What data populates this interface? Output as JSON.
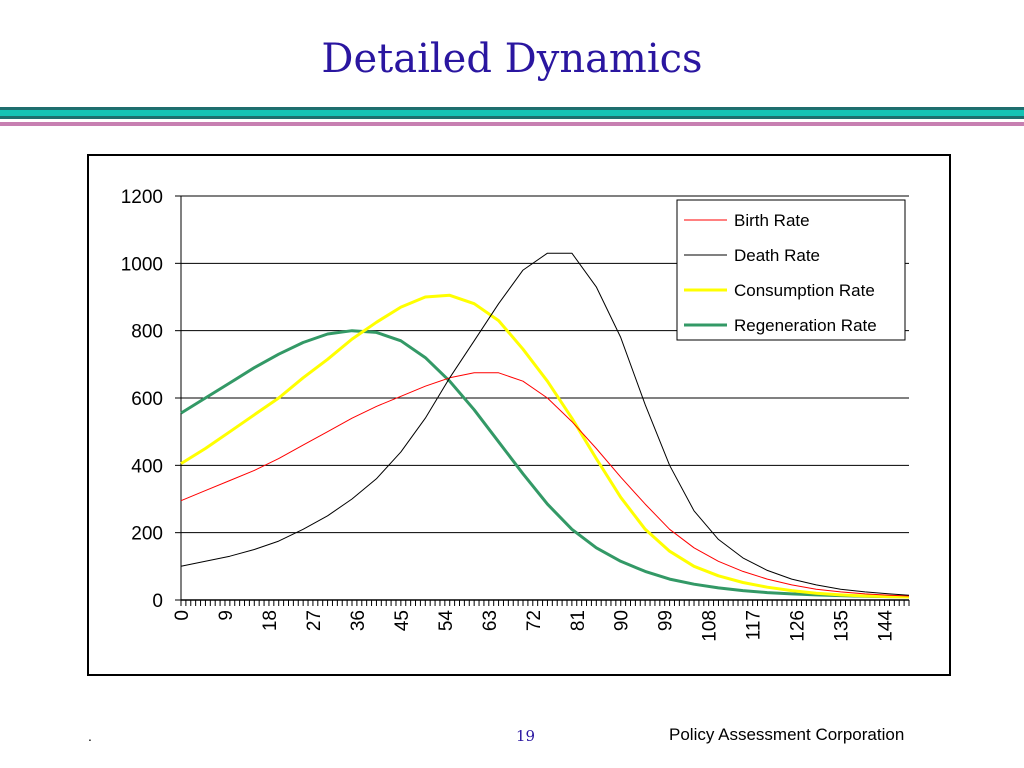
{
  "slide": {
    "title": "Detailed Dynamics",
    "footer_left": ".",
    "page_number": "19",
    "organization": "Policy Assessment Corporation"
  },
  "colors": {
    "title": "#2a16a0",
    "rule_dark": "#1e6e6e",
    "rule_teal": "#15c3b5",
    "rule_pink": "#c77fb1"
  },
  "chart_data": {
    "type": "line",
    "title": "",
    "xlabel": "",
    "ylabel": "",
    "ylim": [
      0,
      1200
    ],
    "xlim": [
      0,
      149
    ],
    "yticks": [
      0,
      200,
      400,
      600,
      800,
      1000,
      1200
    ],
    "xticks": [
      "0",
      "9",
      "18",
      "27",
      "36",
      "45",
      "54",
      "63",
      "72",
      "81",
      "90",
      "99",
      "108",
      "117",
      "126",
      "135",
      "144"
    ],
    "grid": "horizontal",
    "legend_position": "top-right",
    "x": [
      0,
      5,
      10,
      15,
      20,
      25,
      30,
      35,
      40,
      45,
      50,
      55,
      60,
      65,
      70,
      75,
      80,
      85,
      90,
      95,
      100,
      105,
      110,
      115,
      120,
      125,
      130,
      135,
      140,
      145,
      149
    ],
    "series": [
      {
        "name": "Birth Rate",
        "color": "#ff0000",
        "width": 1,
        "values": [
          295,
          325,
          355,
          385,
          420,
          460,
          500,
          540,
          575,
          605,
          635,
          660,
          675,
          675,
          650,
          600,
          530,
          450,
          365,
          285,
          210,
          155,
          115,
          85,
          62,
          45,
          32,
          24,
          18,
          14,
          12
        ]
      },
      {
        "name": "Death Rate",
        "color": "#000000",
        "width": 1,
        "values": [
          100,
          115,
          130,
          150,
          175,
          210,
          250,
          300,
          360,
          440,
          540,
          660,
          770,
          880,
          980,
          1030,
          1030,
          930,
          780,
          580,
          400,
          265,
          180,
          125,
          88,
          62,
          45,
          32,
          24,
          18,
          14
        ]
      },
      {
        "name": "Consumption Rate",
        "color": "#ffff00",
        "width": 3,
        "values": [
          405,
          450,
          500,
          550,
          600,
          660,
          715,
          775,
          825,
          870,
          900,
          905,
          880,
          830,
          745,
          650,
          540,
          420,
          305,
          210,
          145,
          100,
          72,
          52,
          38,
          28,
          20,
          15,
          12,
          10,
          9
        ]
      },
      {
        "name": "Regeneration Rate",
        "color": "#339966",
        "width": 3,
        "values": [
          555,
          600,
          645,
          690,
          730,
          765,
          790,
          800,
          795,
          770,
          720,
          650,
          565,
          470,
          375,
          285,
          210,
          155,
          115,
          85,
          62,
          47,
          36,
          28,
          22,
          18,
          15,
          13,
          11,
          10,
          10
        ]
      }
    ]
  }
}
